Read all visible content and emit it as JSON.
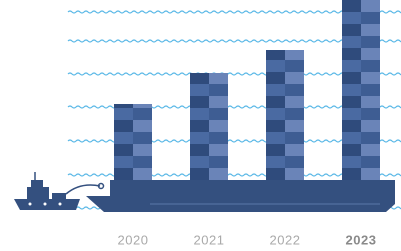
{
  "chart_data": {
    "type": "bar",
    "categories": [
      "2020",
      "2021",
      "2022",
      "2023"
    ],
    "values": [
      76,
      107,
      130,
      180
    ],
    "color": "#34507f",
    "ylim": [
      0,
      180
    ]
  }
}
